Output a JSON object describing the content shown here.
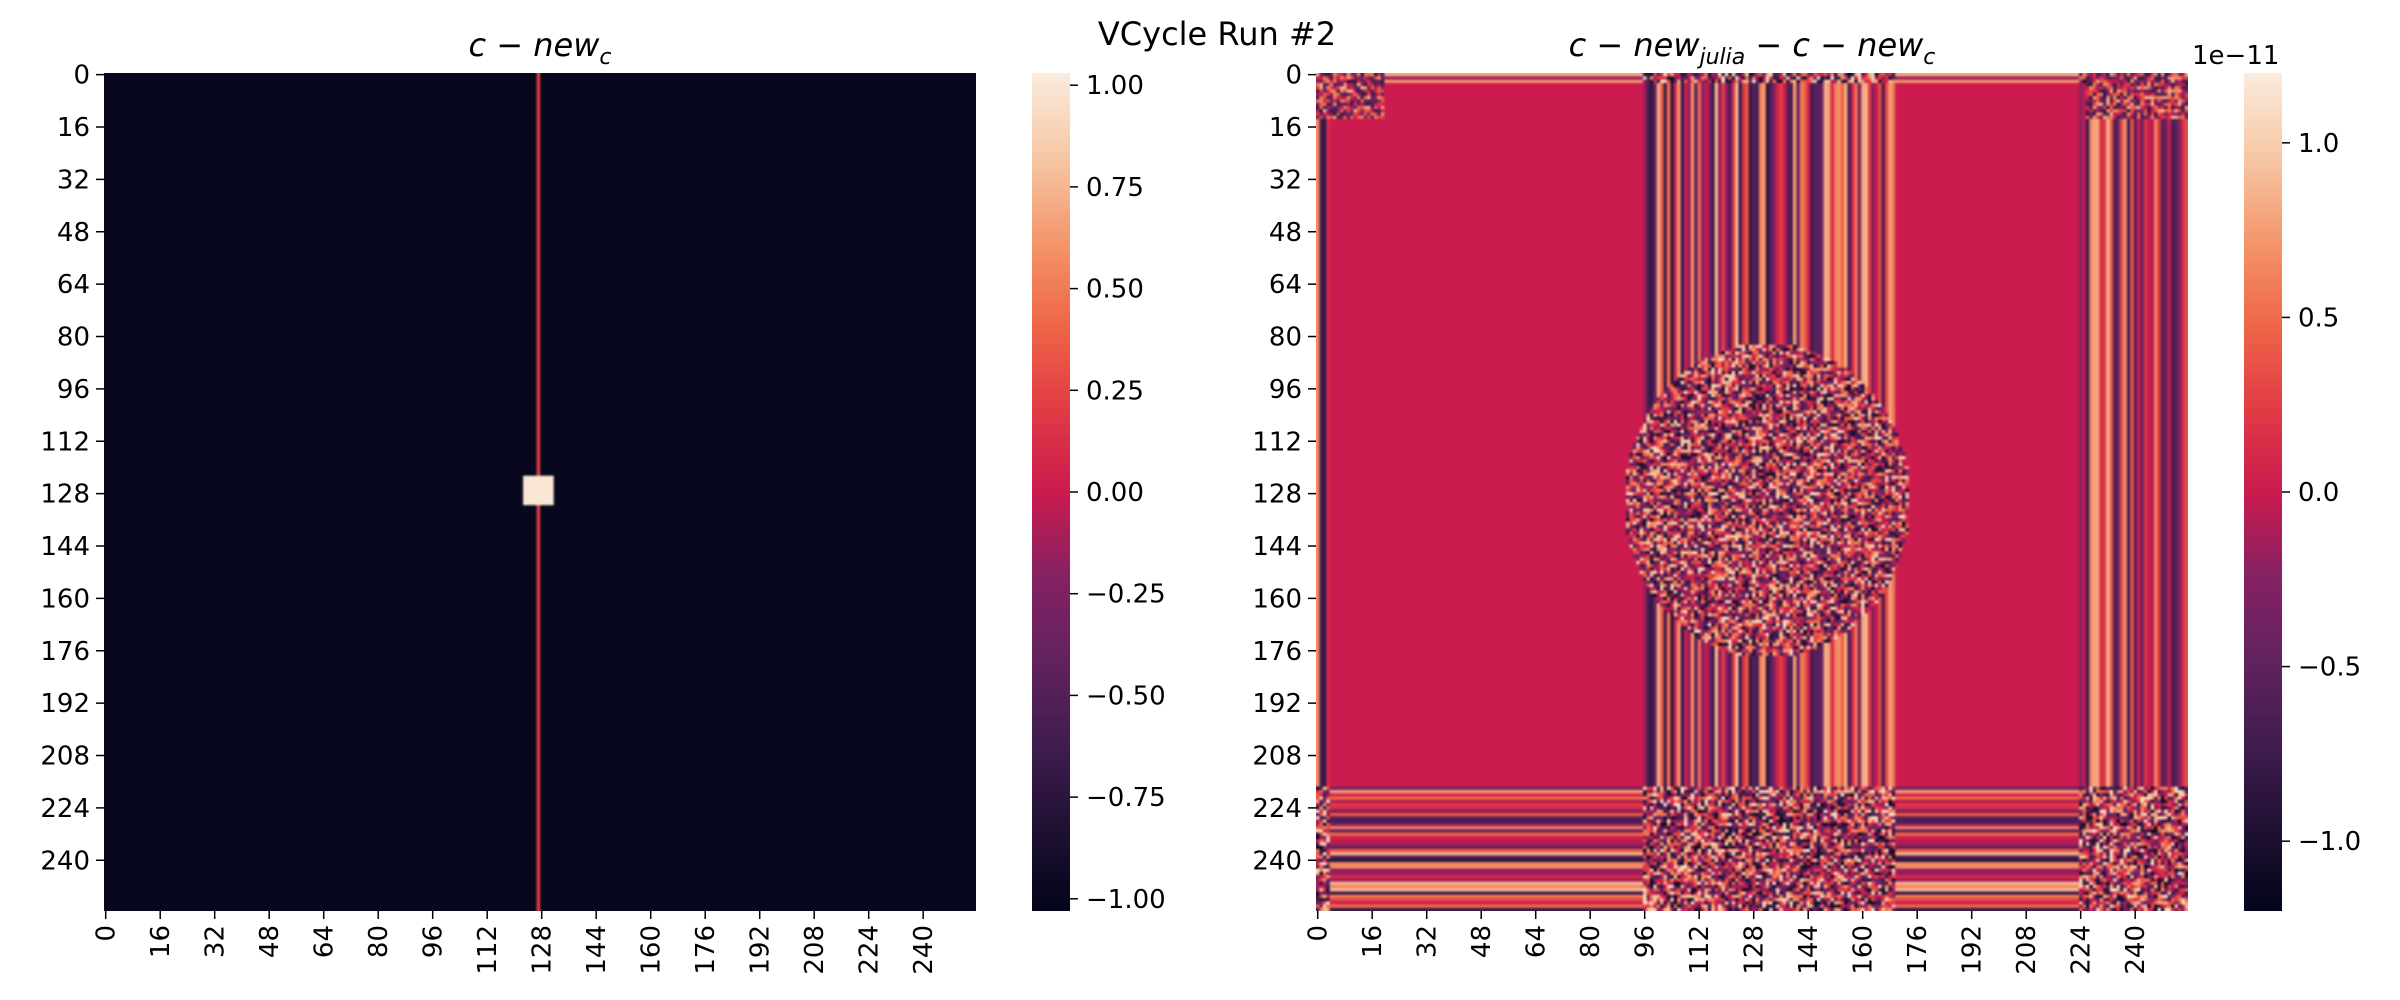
{
  "figure": {
    "suptitle": "VCycle Run #2"
  },
  "chart_data": [
    {
      "type": "heatmap",
      "title": "c − new",
      "title_subscript": "c",
      "shape": [
        256,
        256
      ],
      "x_ticks": [
        "0",
        "16",
        "32",
        "48",
        "64",
        "80",
        "96",
        "112",
        "128",
        "144",
        "160",
        "176",
        "192",
        "208",
        "224",
        "240"
      ],
      "y_ticks": [
        "0",
        "16",
        "32",
        "48",
        "64",
        "80",
        "96",
        "112",
        "128",
        "144",
        "160",
        "176",
        "192",
        "208",
        "224",
        "240"
      ],
      "colorbar": {
        "vmin": -1.03,
        "vmax": 1.03,
        "ticks": [
          "−1.00",
          "−0.75",
          "−0.50",
          "−0.25",
          "0.00",
          "0.25",
          "0.50",
          "0.75",
          "1.00"
        ],
        "tick_values": [
          -1.0,
          -0.75,
          -0.5,
          -0.25,
          0.0,
          0.25,
          0.5,
          0.75,
          1.0
        ],
        "offset_label": ""
      },
      "colormap": "rocket",
      "background_value": -1.0,
      "features": [
        {
          "kind": "vertical-line",
          "col": 127,
          "value": 0.25
        },
        {
          "kind": "square",
          "row_start": 123,
          "row_end": 132,
          "col_start": 123,
          "col_end": 132,
          "value": 1.0
        }
      ]
    },
    {
      "type": "heatmap",
      "title": "c − new",
      "title_subscript_1": "julia",
      "title_mid": " − c − new",
      "title_subscript_2": "c",
      "shape": [
        256,
        256
      ],
      "x_ticks": [
        "0",
        "16",
        "32",
        "48",
        "64",
        "80",
        "96",
        "112",
        "128",
        "144",
        "160",
        "176",
        "192",
        "208",
        "224",
        "240"
      ],
      "y_ticks": [
        "0",
        "16",
        "32",
        "48",
        "64",
        "80",
        "96",
        "112",
        "128",
        "144",
        "160",
        "176",
        "192",
        "208",
        "224",
        "240"
      ],
      "colorbar": {
        "vmin": -1.2,
        "vmax": 1.2,
        "ticks": [
          "−1.0",
          "−0.5",
          "0.0",
          "0.5",
          "1.0"
        ],
        "tick_values": [
          -1.0,
          -0.5,
          0.0,
          0.5,
          1.0
        ],
        "offset_label": "1e−11"
      },
      "colormap": "rocket",
      "background_value": 0.0,
      "features": [
        {
          "kind": "edge-bands",
          "sides": [
            "left",
            "right",
            "top",
            "bottom"
          ]
        },
        {
          "kind": "vertical-band",
          "col_start": 96,
          "col_end": 170
        },
        {
          "kind": "vertical-band",
          "col_start": 224,
          "col_end": 256
        },
        {
          "kind": "horizontal-band",
          "row_start": 218,
          "row_end": 256
        },
        {
          "kind": "noisy-blob",
          "row_start": 85,
          "row_end": 175,
          "col_start": 92,
          "col_end": 172
        }
      ]
    }
  ]
}
